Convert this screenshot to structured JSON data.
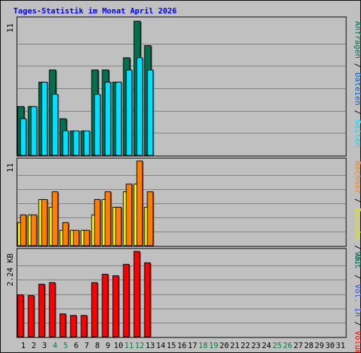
{
  "title": "Tages-Statistik im Monat April 2026",
  "chart_data": [
    {
      "type": "bar",
      "panel": "hits-files-pages",
      "categories": [
        "1",
        "2",
        "3",
        "4",
        "5",
        "6",
        "7",
        "8",
        "9",
        "10",
        "11",
        "12",
        "13",
        "14",
        "15",
        "16",
        "17",
        "18",
        "19",
        "20",
        "21",
        "22",
        "23",
        "24",
        "25",
        "26",
        "27",
        "28",
        "29",
        "30",
        "31"
      ],
      "ymax_label": "11",
      "ylim": [
        0,
        11
      ],
      "grid": true,
      "series": [
        {
          "name": "Anfragen",
          "color": "#007050",
          "values": [
            4,
            4,
            6,
            7,
            3,
            2,
            2,
            7,
            7,
            6,
            8,
            11,
            9,
            null,
            null,
            null,
            null,
            null,
            null,
            null,
            null,
            null,
            null,
            null,
            null,
            null,
            null,
            null,
            null,
            null,
            null
          ]
        },
        {
          "name": "Dateien",
          "color": "#00a0e0",
          "values": [
            3,
            4,
            6,
            5,
            2,
            2,
            2,
            5,
            6,
            6,
            7,
            8,
            7,
            null,
            null,
            null,
            null,
            null,
            null,
            null,
            null,
            null,
            null,
            null,
            null,
            null,
            null,
            null,
            null,
            null,
            null
          ]
        },
        {
          "name": "Seiten",
          "color": "#00e0ff",
          "values": [
            3,
            4,
            6,
            5,
            2,
            2,
            2,
            5,
            6,
            6,
            7,
            8,
            7,
            null,
            null,
            null,
            null,
            null,
            null,
            null,
            null,
            null,
            null,
            null,
            null,
            null,
            null,
            null,
            null,
            null,
            null
          ]
        }
      ]
    },
    {
      "type": "bar",
      "panel": "visits-sites",
      "categories": [
        "1",
        "2",
        "3",
        "4",
        "5",
        "6",
        "7",
        "8",
        "9",
        "10",
        "11",
        "12",
        "13",
        "14",
        "15",
        "16",
        "17",
        "18",
        "19",
        "20",
        "21",
        "22",
        "23",
        "24",
        "25",
        "26",
        "27",
        "28",
        "29",
        "30",
        "31"
      ],
      "ymax_label": "11",
      "ylim": [
        0,
        11
      ],
      "grid": true,
      "series": [
        {
          "name": "Besuche",
          "color": "#ffff00",
          "values": [
            3,
            4,
            6,
            5,
            2,
            2,
            2,
            4,
            6,
            5,
            7,
            8,
            5,
            null,
            null,
            null,
            null,
            null,
            null,
            null,
            null,
            null,
            null,
            null,
            null,
            null,
            null,
            null,
            null,
            null,
            null
          ]
        },
        {
          "name": "Rechner",
          "color": "#ff8000",
          "values": [
            4,
            4,
            6,
            7,
            3,
            2,
            2,
            6,
            7,
            5,
            8,
            11,
            7,
            null,
            null,
            null,
            null,
            null,
            null,
            null,
            null,
            null,
            null,
            null,
            null,
            null,
            null,
            null,
            null,
            null,
            null
          ]
        }
      ]
    },
    {
      "type": "bar",
      "panel": "volume",
      "categories": [
        "1",
        "2",
        "3",
        "4",
        "5",
        "6",
        "7",
        "8",
        "9",
        "10",
        "11",
        "12",
        "13",
        "14",
        "15",
        "16",
        "17",
        "18",
        "19",
        "20",
        "21",
        "22",
        "23",
        "24",
        "25",
        "26",
        "27",
        "28",
        "29",
        "30",
        "31"
      ],
      "ymax_label": "2.24 KB",
      "ylim": [
        0,
        2.24
      ],
      "grid": true,
      "series": [
        {
          "name": "Volumen",
          "color": "#ff0000",
          "values": [
            1.1,
            1.08,
            1.38,
            1.42,
            0.6,
            0.56,
            0.56,
            1.42,
            1.64,
            1.6,
            1.9,
            2.24,
            1.94,
            null,
            null,
            null,
            null,
            null,
            null,
            null,
            null,
            null,
            null,
            null,
            null,
            null,
            null,
            null,
            null,
            null,
            null
          ]
        },
        {
          "name": "Vol. In",
          "color": "#3050d0",
          "values": [
            null,
            null,
            null,
            null,
            null,
            null,
            null,
            null,
            null,
            null,
            null,
            null,
            null,
            null,
            null,
            null,
            null,
            null,
            null,
            null,
            null,
            null,
            null,
            null,
            null,
            null,
            null,
            null,
            null,
            null,
            null
          ]
        },
        {
          "name": "Vol. Out",
          "color": "#007050",
          "values": [
            null,
            null,
            null,
            null,
            null,
            null,
            null,
            null,
            null,
            null,
            null,
            null,
            null,
            null,
            null,
            null,
            null,
            null,
            null,
            null,
            null,
            null,
            null,
            null,
            null,
            null,
            null,
            null,
            null,
            null,
            null
          ]
        }
      ]
    }
  ],
  "xaxis": {
    "weekend_color": "#008040",
    "weekday_color": "#000000",
    "weekend_days": [
      "4",
      "5",
      "11",
      "12",
      "18",
      "19",
      "25",
      "26"
    ]
  },
  "legends": [
    {
      "items": [
        {
          "text": "Seiten",
          "color": "#00e0ff"
        },
        {
          "text": "Dateien",
          "color": "#0060c0"
        },
        {
          "text": "Anfragen",
          "color": "#007050"
        }
      ]
    },
    {
      "items": [
        {
          "text": "Out",
          "color": "#007050"
        },
        {
          "text": "Besuche",
          "color": "#e8e800"
        },
        {
          "text": "Rechner",
          "color": "#ff8000"
        }
      ]
    },
    {
      "items": [
        {
          "text": "Volumen",
          "color": "#ff0000"
        },
        {
          "text": "Vol. In",
          "color": "#3050d0"
        },
        {
          "text": "Vol.",
          "color": "#007050"
        }
      ]
    }
  ],
  "legend_separator": "/"
}
